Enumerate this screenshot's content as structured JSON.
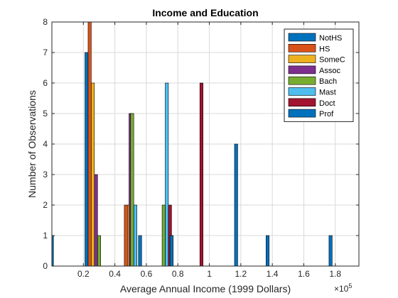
{
  "chart_data": {
    "type": "bar",
    "title": "Income and Education",
    "xlabel": "Average Annual Income  (1999 Dollars)",
    "ylabel": "Number of Observations",
    "x_exponent_label": "×10",
    "x_exponent_power": "5",
    "x_scale": 100000,
    "xlim": [
      0.0,
      1.95
    ],
    "ylim": [
      0,
      8
    ],
    "xticks": [
      "0.2",
      "0.4",
      "0.6",
      "0.8",
      "1",
      "1.2",
      "1.4",
      "1.6",
      "1.8"
    ],
    "yticks": [
      "0",
      "1",
      "2",
      "3",
      "4",
      "5",
      "6",
      "7",
      "8"
    ],
    "grid": true,
    "legend_position": "top-right",
    "bar_width": 0.02,
    "series": [
      {
        "name": "NotHS",
        "color": "#0072BD",
        "points": [
          [
            0.0,
            1
          ],
          [
            0.22,
            7
          ],
          [
            0.56,
            1
          ],
          [
            1.17,
            4
          ],
          [
            1.37,
            1
          ],
          [
            1.77,
            1
          ]
        ]
      },
      {
        "name": "HS",
        "color": "#D95319",
        "points": [
          [
            0.24,
            8
          ],
          [
            0.47,
            2
          ],
          [
            0.76,
            1
          ]
        ]
      },
      {
        "name": "SomeC",
        "color": "#EDB120",
        "points": [
          [
            0.26,
            6
          ],
          [
            0.49,
            2
          ]
        ]
      },
      {
        "name": "Assoc",
        "color": "#7E2F8E",
        "points": [
          [
            0.28,
            3
          ],
          [
            0.5,
            5
          ]
        ]
      },
      {
        "name": "Bach",
        "color": "#77AC30",
        "points": [
          [
            0.3,
            1
          ],
          [
            0.51,
            5
          ],
          [
            0.71,
            2
          ]
        ]
      },
      {
        "name": "Mast",
        "color": "#4DBEEE",
        "points": [
          [
            0.53,
            2
          ],
          [
            0.73,
            6
          ]
        ]
      },
      {
        "name": "Doct",
        "color": "#A2142F",
        "points": [
          [
            0.75,
            2
          ],
          [
            0.95,
            6
          ]
        ]
      },
      {
        "name": "Prof",
        "color": "#0072BD",
        "points": [
          [
            0.76,
            1
          ]
        ]
      }
    ]
  }
}
